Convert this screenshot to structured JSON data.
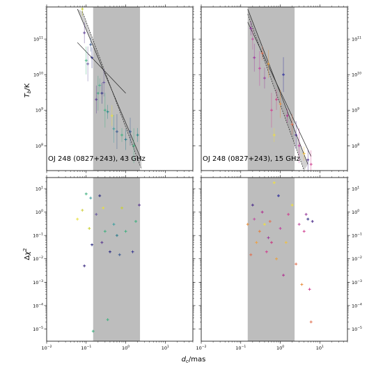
{
  "chart_data": [
    {
      "type": "scatter",
      "panel": "top-left",
      "annotation": "OJ 248 (0827+243), 43 GHz",
      "ylabel": "T_b/K",
      "xlim": [
        0.01,
        50
      ],
      "ylim": [
        20000000.0,
        800000000000.0
      ],
      "log_x": true,
      "log_y": true,
      "shaded_x_range": [
        0.15,
        2.3
      ],
      "fit_lines": [
        {
          "x": [
            0.06,
            2.5
          ],
          "y": [
            700000000000.0,
            40000000.0
          ]
        },
        {
          "x": [
            0.08,
            2.5
          ],
          "y": [
            600000000000.0,
            22000000.0
          ]
        },
        {
          "x": [
            0.06,
            1.0
          ],
          "y": [
            80000000000.0,
            3000000000.0
          ]
        }
      ],
      "points": [
        {
          "x": 0.08,
          "y": 700000000000.0,
          "color": "#c8d030"
        },
        {
          "x": 0.09,
          "y": 150000000000.0,
          "color": "#5a3a90"
        },
        {
          "x": 0.1,
          "y": 25000000000.0,
          "color": "#40b080"
        },
        {
          "x": 0.11,
          "y": 20000000000.0,
          "color": "#6a5aa0"
        },
        {
          "x": 0.13,
          "y": 70000000000.0,
          "color": "#3a5a90"
        },
        {
          "x": 0.14,
          "y": 30000000000.0,
          "color": "#2a2a80"
        },
        {
          "x": 0.18,
          "y": 2000000000.0,
          "color": "#5a3a90"
        },
        {
          "x": 0.2,
          "y": 3000000000.0,
          "color": "#40a080"
        },
        {
          "x": 0.22,
          "y": 5000000000.0,
          "color": "#50b090"
        },
        {
          "x": 0.25,
          "y": 3000000000.0,
          "color": "#2a2a80"
        },
        {
          "x": 0.28,
          "y": 6000000000.0,
          "color": "#6a5aa0"
        },
        {
          "x": 0.3,
          "y": 1000000000.0,
          "color": "#40b080"
        },
        {
          "x": 0.35,
          "y": 900000000.0,
          "color": "#2a8a8a"
        },
        {
          "x": 0.45,
          "y": 700000000.0,
          "color": "#e8e040"
        },
        {
          "x": 0.5,
          "y": 300000000.0,
          "color": "#40a0a0"
        },
        {
          "x": 0.6,
          "y": 250000000.0,
          "color": "#3a5a90"
        },
        {
          "x": 0.8,
          "y": 200000000.0,
          "color": "#40b080"
        },
        {
          "x": 1.0,
          "y": 150000000.0,
          "color": "#2a7a8a"
        },
        {
          "x": 1.3,
          "y": 250000000.0,
          "color": "#3a5a90"
        },
        {
          "x": 1.6,
          "y": 100000000.0,
          "color": "#40b080"
        },
        {
          "x": 2.0,
          "y": 200000000.0,
          "color": "#2a8a8a"
        }
      ]
    },
    {
      "type": "scatter",
      "panel": "top-right",
      "annotation": "OJ 248 (0827+243), 15 GHz",
      "xlim": [
        0.01,
        50
      ],
      "ylim": [
        20000000.0,
        800000000000.0
      ],
      "log_x": true,
      "log_y": true,
      "shaded_x_range": [
        0.15,
        2.3
      ],
      "fit_lines": [
        {
          "x": [
            0.15,
            5.0
          ],
          "y": [
            700000000000.0,
            30000000.0
          ]
        },
        {
          "x": [
            0.15,
            4.0
          ],
          "y": [
            500000000000.0,
            20000000.0
          ]
        },
        {
          "x": [
            0.15,
            6.0
          ],
          "y": [
            300000000000.0,
            50000000.0
          ]
        }
      ],
      "points": [
        {
          "x": 0.18,
          "y": 200000000000.0,
          "color": "#8a2a9a"
        },
        {
          "x": 0.2,
          "y": 100000000000.0,
          "color": "#c050a0"
        },
        {
          "x": 0.22,
          "y": 30000000000.0,
          "color": "#a030a0"
        },
        {
          "x": 0.3,
          "y": 15000000000.0,
          "color": "#c040a0"
        },
        {
          "x": 0.35,
          "y": 40000000000.0,
          "color": "#e07050"
        },
        {
          "x": 0.4,
          "y": 8000000000.0,
          "color": "#9a3a9a"
        },
        {
          "x": 0.5,
          "y": 20000000000.0,
          "color": "#e8a040"
        },
        {
          "x": 0.6,
          "y": 1000000000.0,
          "color": "#d04090"
        },
        {
          "x": 0.7,
          "y": 200000000.0,
          "color": "#f0e040"
        },
        {
          "x": 0.8,
          "y": 2000000000.0,
          "color": "#c83a80"
        },
        {
          "x": 1.0,
          "y": 1500000000.0,
          "color": "#e89040"
        },
        {
          "x": 1.2,
          "y": 10000000000.0,
          "color": "#2a2a9a"
        },
        {
          "x": 1.5,
          "y": 700000000.0,
          "color": "#b03090"
        },
        {
          "x": 2.0,
          "y": 400000000.0,
          "color": "#e07050"
        },
        {
          "x": 2.5,
          "y": 200000000.0,
          "color": "#4a2a8a"
        },
        {
          "x": 3.0,
          "y": 100000000.0,
          "color": "#c040a0"
        },
        {
          "x": 4.0,
          "y": 60000000.0,
          "color": "#f0c040"
        },
        {
          "x": 5.0,
          "y": 40000000.0,
          "color": "#4a2a8a"
        },
        {
          "x": 6.0,
          "y": 30000000.0,
          "color": "#d04090"
        }
      ]
    },
    {
      "type": "scatter",
      "panel": "bottom-left",
      "xlabel": "d_c/mas",
      "ylabel": "Δχ^2",
      "xlim": [
        0.01,
        50
      ],
      "ylim": [
        3e-06,
        30
      ],
      "log_x": true,
      "log_y": true,
      "shaded_x_range": [
        0.15,
        2.3
      ],
      "points": [
        {
          "x": 0.06,
          "y": 0.5,
          "color": "#e8e040"
        },
        {
          "x": 0.08,
          "y": 1.2,
          "color": "#d0d040"
        },
        {
          "x": 0.09,
          "y": 0.005,
          "color": "#3a2a80"
        },
        {
          "x": 0.1,
          "y": 6.0,
          "color": "#40b080"
        },
        {
          "x": 0.12,
          "y": 0.2,
          "color": "#c8d030"
        },
        {
          "x": 0.13,
          "y": 4.0,
          "color": "#40a0a0"
        },
        {
          "x": 0.14,
          "y": 0.04,
          "color": "#2a2a80"
        },
        {
          "x": 0.15,
          "y": 8e-06,
          "color": "#40b080"
        },
        {
          "x": 0.18,
          "y": 0.8,
          "color": "#6a5aa0"
        },
        {
          "x": 0.22,
          "y": 5.0,
          "color": "#2a2a80"
        },
        {
          "x": 0.25,
          "y": 0.05,
          "color": "#5a3a90"
        },
        {
          "x": 0.27,
          "y": 1.5,
          "color": "#e8e040"
        },
        {
          "x": 0.3,
          "y": 0.15,
          "color": "#40b080"
        },
        {
          "x": 0.35,
          "y": 2.5e-05,
          "color": "#40b080"
        },
        {
          "x": 0.4,
          "y": 0.02,
          "color": "#2a2a80"
        },
        {
          "x": 0.5,
          "y": 0.3,
          "color": "#40a0a0"
        },
        {
          "x": 0.6,
          "y": 0.1,
          "color": "#2a7a8a"
        },
        {
          "x": 0.7,
          "y": 0.015,
          "color": "#3a5a90"
        },
        {
          "x": 0.8,
          "y": 1.5,
          "color": "#c8d030"
        },
        {
          "x": 1.0,
          "y": 0.15,
          "color": "#40b080"
        },
        {
          "x": 1.5,
          "y": 0.02,
          "color": "#3a3a90"
        },
        {
          "x": 1.8,
          "y": 0.4,
          "color": "#40b080"
        },
        {
          "x": 2.2,
          "y": 2.0,
          "color": "#5a3a90"
        }
      ]
    },
    {
      "type": "scatter",
      "panel": "bottom-right",
      "xlim": [
        0.01,
        50
      ],
      "ylim": [
        3e-06,
        30
      ],
      "log_x": true,
      "log_y": true,
      "shaded_x_range": [
        0.15,
        2.3
      ],
      "points": [
        {
          "x": 0.15,
          "y": 0.3,
          "color": "#e89040"
        },
        {
          "x": 0.18,
          "y": 0.015,
          "color": "#e07050"
        },
        {
          "x": 0.2,
          "y": 2.0,
          "color": "#4a2a8a"
        },
        {
          "x": 0.22,
          "y": 0.5,
          "color": "#c050a0"
        },
        {
          "x": 0.25,
          "y": 0.05,
          "color": "#f0a040"
        },
        {
          "x": 0.3,
          "y": 0.15,
          "color": "#e08040"
        },
        {
          "x": 0.35,
          "y": 1.0,
          "color": "#b03090"
        },
        {
          "x": 0.4,
          "y": 0.3,
          "color": "#f0e040"
        },
        {
          "x": 0.45,
          "y": 0.02,
          "color": "#d04090"
        },
        {
          "x": 0.5,
          "y": 0.08,
          "color": "#9a3a9a"
        },
        {
          "x": 0.55,
          "y": 0.4,
          "color": "#e07050"
        },
        {
          "x": 0.6,
          "y": 0.05,
          "color": "#c83a80"
        },
        {
          "x": 0.7,
          "y": 18.0,
          "color": "#f0e040"
        },
        {
          "x": 0.8,
          "y": 0.01,
          "color": "#e8a040"
        },
        {
          "x": 0.9,
          "y": 5.0,
          "color": "#2a2a9a"
        },
        {
          "x": 1.0,
          "y": 0.2,
          "color": "#c040a0"
        },
        {
          "x": 1.2,
          "y": 0.002,
          "color": "#b03090"
        },
        {
          "x": 1.4,
          "y": 0.05,
          "color": "#f0c040"
        },
        {
          "x": 1.6,
          "y": 0.8,
          "color": "#d04090"
        },
        {
          "x": 2.0,
          "y": 2.0,
          "color": "#f0e040"
        },
        {
          "x": 2.5,
          "y": 0.006,
          "color": "#e07050"
        },
        {
          "x": 3.0,
          "y": 0.3,
          "color": "#c050a0"
        },
        {
          "x": 3.5,
          "y": 0.0008,
          "color": "#e89040"
        },
        {
          "x": 4.0,
          "y": 0.15,
          "color": "#d04090"
        },
        {
          "x": 4.5,
          "y": 0.8,
          "color": "#9a3a9a"
        },
        {
          "x": 5.0,
          "y": 0.5,
          "color": "#2a2a80"
        },
        {
          "x": 5.5,
          "y": 0.0005,
          "color": "#d04090"
        },
        {
          "x": 6.0,
          "y": 2e-05,
          "color": "#e07050"
        },
        {
          "x": 6.5,
          "y": 0.4,
          "color": "#4a2a8a"
        }
      ]
    }
  ]
}
